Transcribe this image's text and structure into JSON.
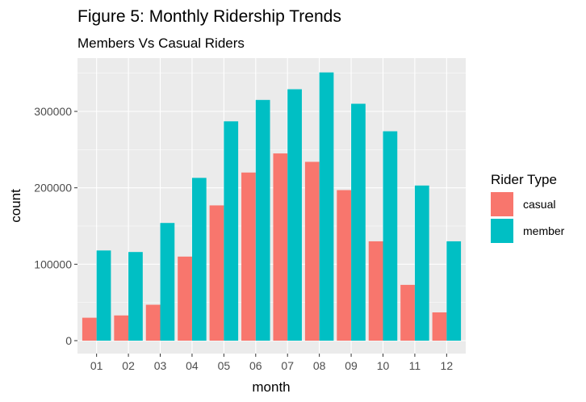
{
  "chart_data": {
    "type": "bar",
    "title": "Figure 5: Monthly Ridership Trends",
    "subtitle": "Members Vs Casual Riders",
    "xlabel": "month",
    "ylabel": "count",
    "categories": [
      "01",
      "02",
      "03",
      "04",
      "05",
      "06",
      "07",
      "08",
      "09",
      "10",
      "11",
      "12"
    ],
    "ylim": [
      0,
      370000
    ],
    "yticks": [
      0,
      100000,
      200000,
      300000
    ],
    "ytick_labels": [
      "0",
      "100000",
      "200000",
      "300000"
    ],
    "grid": true,
    "legend": {
      "title": "Rider Type",
      "position": "right"
    },
    "series": [
      {
        "name": "casual",
        "color": "#F8766D",
        "values": [
          30000,
          33000,
          47000,
          110000,
          177000,
          220000,
          245000,
          234000,
          197000,
          130000,
          73000,
          37000
        ]
      },
      {
        "name": "member",
        "color": "#00BFC4",
        "values": [
          118000,
          116000,
          154000,
          213000,
          287000,
          315000,
          329000,
          351000,
          310000,
          274000,
          203000,
          130000
        ]
      }
    ]
  },
  "colors": {
    "panel_background": "#EBEBEB",
    "grid_major": "#FFFFFF",
    "tick_text": "#4D4D4D"
  }
}
